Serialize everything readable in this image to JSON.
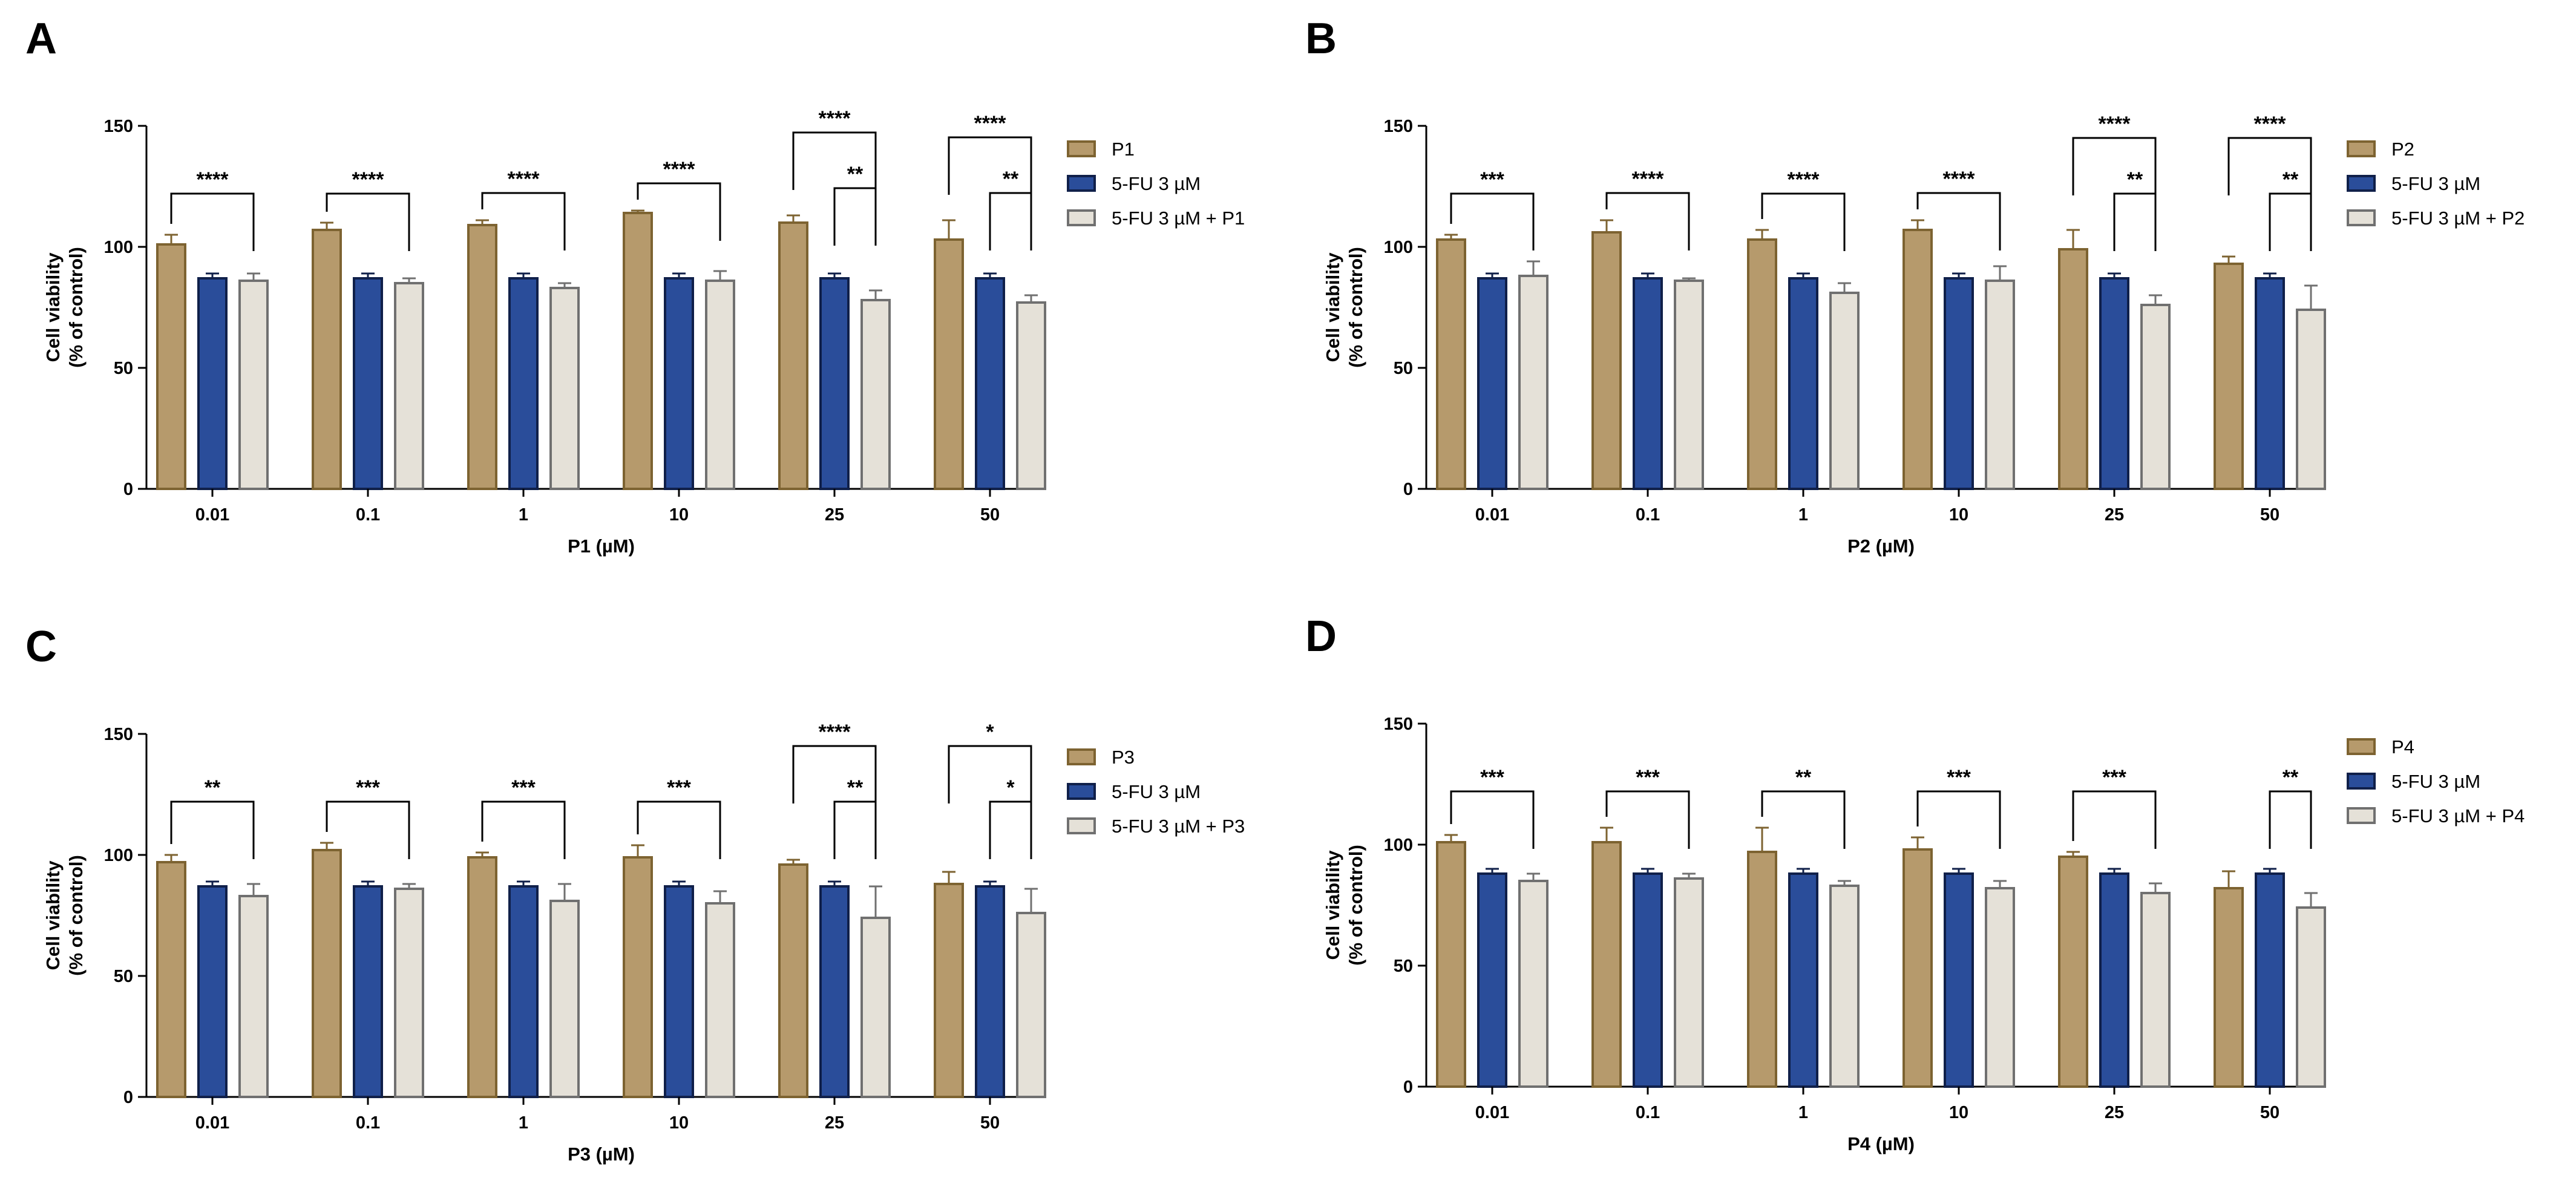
{
  "colors": {
    "p": "#B69A6C",
    "p_edge": "#7D6331",
    "fu": "#2A4D9A",
    "fu_edge": "#10204A",
    "combo": "#E5E1D8",
    "combo_edge": "#707070"
  },
  "chart_data": [
    {
      "panel": "A",
      "type": "bar",
      "xlabel": "P1 (µM)",
      "ylabel": [
        "Cell viability",
        "(% of control)"
      ],
      "ylim": [
        0,
        150
      ],
      "yticks": [
        0,
        50,
        100,
        150
      ],
      "categories": [
        "0.01",
        "0.1",
        "1",
        "10",
        "25",
        "50"
      ],
      "legend_position": "right",
      "series": [
        {
          "name": "P1",
          "values": [
            101,
            107,
            109,
            114,
            110,
            103
          ],
          "errors": [
            4,
            3,
            2,
            1,
            3,
            8
          ]
        },
        {
          "name": "5-FU 3 µM",
          "values": [
            87,
            87,
            87,
            87,
            87,
            87
          ],
          "errors": [
            2,
            2,
            2,
            2,
            2,
            2
          ]
        },
        {
          "name": "5-FU 3 µM + P1",
          "values": [
            86,
            85,
            83,
            86,
            78,
            77
          ],
          "errors": [
            3,
            2,
            2,
            4,
            4,
            3
          ]
        }
      ],
      "significance": [
        {
          "group": 0,
          "from": 0,
          "to": 2,
          "label": "****",
          "level": 0
        },
        {
          "group": 1,
          "from": 0,
          "to": 2,
          "label": "****",
          "level": 0
        },
        {
          "group": 2,
          "from": 0,
          "to": 2,
          "label": "****",
          "level": 0
        },
        {
          "group": 3,
          "from": 0,
          "to": 2,
          "label": "****",
          "level": 0
        },
        {
          "group": 4,
          "from": 1,
          "to": 2,
          "label": "**",
          "level": 0
        },
        {
          "group": 4,
          "from": 0,
          "to": 2,
          "label": "****",
          "level": 1
        },
        {
          "group": 5,
          "from": 1,
          "to": 2,
          "label": "**",
          "level": 0
        },
        {
          "group": 5,
          "from": 0,
          "to": 2,
          "label": "****",
          "level": 1
        }
      ]
    },
    {
      "panel": "B",
      "type": "bar",
      "xlabel": "P2 (µM)",
      "ylabel": [
        "Cell viability",
        "(% of control)"
      ],
      "ylim": [
        0,
        150
      ],
      "yticks": [
        0,
        50,
        100,
        150
      ],
      "categories": [
        "0.01",
        "0.1",
        "1",
        "10",
        "25",
        "50"
      ],
      "legend_position": "right",
      "series": [
        {
          "name": "P2",
          "values": [
            103,
            106,
            103,
            107,
            99,
            93
          ],
          "errors": [
            2,
            5,
            4,
            4,
            8,
            3
          ]
        },
        {
          "name": "5-FU 3 µM",
          "values": [
            87,
            87,
            87,
            87,
            87,
            87
          ],
          "errors": [
            2,
            2,
            2,
            2,
            2,
            2
          ]
        },
        {
          "name": "5-FU 3 µM + P2",
          "values": [
            88,
            86,
            81,
            86,
            76,
            74
          ],
          "errors": [
            6,
            1,
            4,
            6,
            4,
            10
          ]
        }
      ],
      "significance": [
        {
          "group": 0,
          "from": 0,
          "to": 2,
          "label": "***",
          "level": 0
        },
        {
          "group": 1,
          "from": 0,
          "to": 2,
          "label": "****",
          "level": 0
        },
        {
          "group": 2,
          "from": 0,
          "to": 2,
          "label": "****",
          "level": 0
        },
        {
          "group": 3,
          "from": 0,
          "to": 2,
          "label": "****",
          "level": 0
        },
        {
          "group": 4,
          "from": 1,
          "to": 2,
          "label": "**",
          "level": 0
        },
        {
          "group": 4,
          "from": 0,
          "to": 2,
          "label": "****",
          "level": 1
        },
        {
          "group": 5,
          "from": 1,
          "to": 2,
          "label": "**",
          "level": 0
        },
        {
          "group": 5,
          "from": 0,
          "to": 2,
          "label": "****",
          "level": 1
        }
      ]
    },
    {
      "panel": "C",
      "type": "bar",
      "xlabel": "P3 (µM)",
      "ylabel": [
        "Cell viability",
        "(% of control)"
      ],
      "ylim": [
        0,
        150
      ],
      "yticks": [
        0,
        50,
        100,
        150
      ],
      "categories": [
        "0.01",
        "0.1",
        "1",
        "10",
        "25",
        "50"
      ],
      "legend_position": "right",
      "series": [
        {
          "name": "P3",
          "values": [
            97,
            102,
            99,
            99,
            96,
            88
          ],
          "errors": [
            3,
            3,
            2,
            5,
            2,
            5
          ]
        },
        {
          "name": "5-FU 3 µM",
          "values": [
            87,
            87,
            87,
            87,
            87,
            87
          ],
          "errors": [
            2,
            2,
            2,
            2,
            2,
            2
          ]
        },
        {
          "name": "5-FU 3 µM + P3",
          "values": [
            83,
            86,
            81,
            80,
            74,
            76
          ],
          "errors": [
            5,
            2,
            7,
            5,
            13,
            10
          ]
        }
      ],
      "significance": [
        {
          "group": 0,
          "from": 0,
          "to": 2,
          "label": "**",
          "level": 0
        },
        {
          "group": 1,
          "from": 0,
          "to": 2,
          "label": "***",
          "level": 0
        },
        {
          "group": 2,
          "from": 0,
          "to": 2,
          "label": "***",
          "level": 0
        },
        {
          "group": 3,
          "from": 0,
          "to": 2,
          "label": "***",
          "level": 0
        },
        {
          "group": 4,
          "from": 1,
          "to": 2,
          "label": "**",
          "level": 0
        },
        {
          "group": 4,
          "from": 0,
          "to": 2,
          "label": "****",
          "level": 1
        },
        {
          "group": 5,
          "from": 1,
          "to": 2,
          "label": "*",
          "level": 0
        },
        {
          "group": 5,
          "from": 0,
          "to": 2,
          "label": "*",
          "level": 1
        }
      ]
    },
    {
      "panel": "D",
      "type": "bar",
      "xlabel": "P4 (µM)",
      "ylabel": [
        "Cell viability",
        "(% of control)"
      ],
      "ylim": [
        0,
        150
      ],
      "yticks": [
        0,
        50,
        100,
        150
      ],
      "categories": [
        "0.01",
        "0.1",
        "1",
        "10",
        "25",
        "50"
      ],
      "legend_position": "right",
      "series": [
        {
          "name": "P4",
          "values": [
            101,
            101,
            97,
            98,
            95,
            82
          ],
          "errors": [
            3,
            6,
            10,
            5,
            2,
            7
          ]
        },
        {
          "name": "5-FU 3 µM",
          "values": [
            88,
            88,
            88,
            88,
            88,
            88
          ],
          "errors": [
            2,
            2,
            2,
            2,
            2,
            2
          ]
        },
        {
          "name": "5-FU 3 µM + P4",
          "values": [
            85,
            86,
            83,
            82,
            80,
            74
          ],
          "errors": [
            3,
            2,
            2,
            3,
            4,
            6
          ]
        }
      ],
      "significance": [
        {
          "group": 0,
          "from": 0,
          "to": 2,
          "label": "***",
          "level": 0
        },
        {
          "group": 1,
          "from": 0,
          "to": 2,
          "label": "***",
          "level": 0
        },
        {
          "group": 2,
          "from": 0,
          "to": 2,
          "label": "**",
          "level": 0
        },
        {
          "group": 3,
          "from": 0,
          "to": 2,
          "label": "***",
          "level": 0
        },
        {
          "group": 4,
          "from": 0,
          "to": 2,
          "label": "***",
          "level": 0
        },
        {
          "group": 5,
          "from": 1,
          "to": 2,
          "label": "**",
          "level": 0
        }
      ]
    }
  ]
}
